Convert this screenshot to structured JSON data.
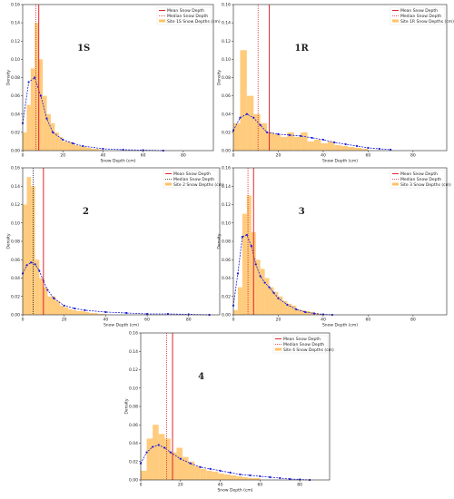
{
  "chart_data": [
    {
      "type": "histogram",
      "label": "1S",
      "x_label": "Snow Depth (cm)",
      "y_label": "Density",
      "xlim": [
        0,
        95
      ],
      "ylim": [
        0,
        0.16
      ],
      "xticks": [
        0,
        20,
        40,
        60,
        80
      ],
      "yticks": [
        {
          "value": 0,
          "label": "0.00"
        },
        {
          "value": 0.02,
          "label": "0.02"
        },
        {
          "value": 0.04,
          "label": "0.04"
        },
        {
          "value": 0.06,
          "label": "0.06"
        },
        {
          "value": 0.08,
          "label": "0.08"
        },
        {
          "value": 0.1,
          "label": "0.10"
        },
        {
          "value": 0.12,
          "label": "0.12"
        },
        {
          "value": 0.14,
          "label": "0.14"
        },
        {
          "value": 0.16,
          "label": "0.16"
        }
      ],
      "hist": {
        "name": "Site 1S Snow Depths (cm)",
        "color": "#ffc266",
        "bins": [
          0,
          2,
          4,
          6,
          8,
          10,
          12,
          14,
          16,
          18,
          20,
          22,
          24,
          26,
          28,
          30,
          32,
          34,
          36,
          38,
          40
        ],
        "counts": [
          0.02,
          0.05,
          0.09,
          0.14,
          0.1,
          0.06,
          0.04,
          0.03,
          0.02,
          0.015,
          0.01,
          0.01,
          0.008,
          0.006,
          0.005,
          0.004,
          0.003,
          0.002,
          0.002,
          0.001
        ]
      },
      "kde": {
        "color": "#1a1adb",
        "x": [
          0,
          3,
          6,
          9,
          12,
          15,
          20,
          25,
          30,
          40,
          50,
          60,
          70
        ],
        "values": [
          0.03,
          0.075,
          0.08,
          0.06,
          0.035,
          0.02,
          0.012,
          0.008,
          0.005,
          0.002,
          0.001,
          0.0005,
          0
        ]
      },
      "mean": {
        "name": "Mean Snow Depth",
        "value": 8,
        "color": "#e0262b"
      },
      "median": {
        "name": "Median Snow Depth",
        "value": 6.5,
        "color": "#e0262b"
      }
    },
    {
      "type": "histogram",
      "label": "1R",
      "x_label": "Snow Depth (cm)",
      "y_label": "Density",
      "xlim": [
        0,
        95
      ],
      "ylim": [
        0,
        0.16
      ],
      "xticks": [
        0,
        20,
        40,
        60,
        80
      ],
      "yticks": [
        {
          "value": 0,
          "label": "0.00"
        },
        {
          "value": 0.02,
          "label": "0.02"
        },
        {
          "value": 0.04,
          "label": "0.04"
        },
        {
          "value": 0.06,
          "label": "0.06"
        },
        {
          "value": 0.08,
          "label": "0.08"
        },
        {
          "value": 0.1,
          "label": "0.10"
        },
        {
          "value": 0.12,
          "label": "0.12"
        },
        {
          "value": 0.14,
          "label": "0.14"
        },
        {
          "value": 0.16,
          "label": "0.16"
        }
      ],
      "hist": {
        "name": "Site 1R Snow Depths (cm)",
        "color": "#ffc266",
        "bins": [
          0,
          3,
          6,
          9,
          12,
          15,
          18,
          21,
          24,
          27,
          30,
          33,
          36,
          39,
          42,
          45,
          48,
          51,
          54,
          57,
          60
        ],
        "counts": [
          0.03,
          0.11,
          0.06,
          0.04,
          0.03,
          0.02,
          0.018,
          0.015,
          0.02,
          0.015,
          0.02,
          0.01,
          0.012,
          0.008,
          0.01,
          0.006,
          0.005,
          0.004,
          0.003,
          0.002
        ]
      },
      "kde": {
        "color": "#1a1adb",
        "x": [
          0,
          3,
          6,
          9,
          12,
          15,
          20,
          25,
          30,
          35,
          40,
          45,
          50,
          55,
          60,
          65,
          70
        ],
        "values": [
          0.022,
          0.036,
          0.04,
          0.036,
          0.028,
          0.02,
          0.018,
          0.017,
          0.016,
          0.014,
          0.012,
          0.009,
          0.007,
          0.005,
          0.003,
          0.002,
          0.001
        ]
      },
      "mean": {
        "name": "Mean Snow Depth",
        "value": 16,
        "color": "#e0262b"
      },
      "median": {
        "name": "Median Snow Depth",
        "value": 11,
        "color": "#e0262b"
      }
    },
    {
      "type": "histogram",
      "label": "2",
      "x_label": "Snow Depth (cm)",
      "y_label": "Density",
      "xlim": [
        0,
        95
      ],
      "ylim": [
        0,
        0.16
      ],
      "xticks": [
        0,
        20,
        40,
        60,
        80
      ],
      "yticks": [
        {
          "value": 0,
          "label": "0.00"
        },
        {
          "value": 0.02,
          "label": "0.02"
        },
        {
          "value": 0.04,
          "label": "0.04"
        },
        {
          "value": 0.06,
          "label": "0.06"
        },
        {
          "value": 0.08,
          "label": "0.08"
        },
        {
          "value": 0.1,
          "label": "0.10"
        },
        {
          "value": 0.12,
          "label": "0.12"
        },
        {
          "value": 0.14,
          "label": "0.14"
        },
        {
          "value": 0.16,
          "label": "0.16"
        }
      ],
      "hist": {
        "name": "Site 2 Snow Depths (cm)",
        "color": "#ffc266",
        "bins": [
          0,
          2,
          4,
          6,
          8,
          10,
          12,
          14,
          16,
          18,
          20,
          22,
          24,
          26,
          28,
          30,
          32,
          34,
          36,
          38,
          40
        ],
        "counts": [
          0.12,
          0.15,
          0.14,
          0.06,
          0.04,
          0.03,
          0.02,
          0.02,
          0.015,
          0.01,
          0.008,
          0.006,
          0.005,
          0.004,
          0.004,
          0.003,
          0.002,
          0.002,
          0.001,
          0.001
        ]
      },
      "kde": {
        "color": "#1a1adb",
        "x": [
          0,
          2,
          4,
          6,
          8,
          10,
          12,
          15,
          20,
          25,
          30,
          40,
          50,
          60,
          70,
          80,
          90
        ],
        "values": [
          0.045,
          0.054,
          0.057,
          0.055,
          0.048,
          0.037,
          0.027,
          0.018,
          0.01,
          0.007,
          0.005,
          0.003,
          0.002,
          0.001,
          0.001,
          0.0005,
          0
        ]
      },
      "mean": {
        "name": "Mean Snow Depth",
        "value": 10,
        "color": "#e0262b"
      },
      "median": {
        "name": "Median Snow Depth",
        "value": 5,
        "color": "#222222"
      }
    },
    {
      "type": "histogram",
      "label": "3",
      "x_label": "Snow Depth (cm)",
      "y_label": "Density",
      "xlim": [
        0,
        95
      ],
      "ylim": [
        0,
        0.16
      ],
      "xticks": [
        0,
        20,
        40,
        60,
        80
      ],
      "yticks": [
        {
          "value": 0,
          "label": "0.00"
        },
        {
          "value": 0.02,
          "label": "0.02"
        },
        {
          "value": 0.04,
          "label": "0.04"
        },
        {
          "value": 0.06,
          "label": "0.06"
        },
        {
          "value": 0.08,
          "label": "0.08"
        },
        {
          "value": 0.1,
          "label": "0.10"
        },
        {
          "value": 0.12,
          "label": "0.12"
        },
        {
          "value": 0.14,
          "label": "0.14"
        },
        {
          "value": 0.16,
          "label": "0.16"
        }
      ],
      "hist": {
        "name": "Site 3 Snow Depths (cm)",
        "color": "#ffc266",
        "bins": [
          0,
          2,
          4,
          6,
          8,
          10,
          12,
          14,
          16,
          18,
          20,
          22,
          24,
          26,
          28,
          30,
          32,
          34,
          36,
          38,
          40
        ],
        "counts": [
          0.005,
          0.03,
          0.11,
          0.13,
          0.09,
          0.06,
          0.05,
          0.04,
          0.03,
          0.025,
          0.02,
          0.015,
          0.012,
          0.01,
          0.006,
          0.005,
          0.004,
          0.003,
          0.002,
          0.001
        ]
      },
      "kde": {
        "color": "#1a1adb",
        "x": [
          0,
          2,
          4,
          6,
          8,
          10,
          12,
          14,
          16,
          18,
          20,
          24,
          28,
          32,
          36,
          40,
          44
        ],
        "values": [
          0.01,
          0.045,
          0.085,
          0.087,
          0.075,
          0.055,
          0.042,
          0.035,
          0.03,
          0.024,
          0.018,
          0.011,
          0.006,
          0.003,
          0.0015,
          0.0005,
          0
        ]
      },
      "mean": {
        "name": "Mean Snow Depth",
        "value": 9,
        "color": "#e0262b"
      },
      "median": {
        "name": "Median Snow Depth",
        "value": 6.5,
        "color": "#e0262b"
      }
    },
    {
      "type": "histogram",
      "label": "4",
      "x_label": "Snow Depth (cm)",
      "y_label": "Density",
      "xlim": [
        0,
        95
      ],
      "ylim": [
        0,
        0.16
      ],
      "xticks": [
        0,
        20,
        40,
        60,
        80
      ],
      "yticks": [
        {
          "value": 0,
          "label": "0.00"
        },
        {
          "value": 0.02,
          "label": "0.02"
        },
        {
          "value": 0.04,
          "label": "0.04"
        },
        {
          "value": 0.06,
          "label": "0.06"
        },
        {
          "value": 0.08,
          "label": "0.08"
        },
        {
          "value": 0.1,
          "label": "0.10"
        },
        {
          "value": 0.12,
          "label": "0.12"
        },
        {
          "value": 0.14,
          "label": "0.14"
        },
        {
          "value": 0.16,
          "label": "0.16"
        }
      ],
      "hist": {
        "name": "Site 4 Snow Depths (cm)",
        "color": "#ffc266",
        "bins": [
          0,
          3,
          6,
          9,
          12,
          15,
          18,
          21,
          24,
          27,
          30,
          33,
          36,
          39,
          42,
          45,
          48,
          51,
          54,
          57,
          60
        ],
        "counts": [
          0.01,
          0.045,
          0.06,
          0.05,
          0.045,
          0.03,
          0.035,
          0.025,
          0.02,
          0.015,
          0.012,
          0.01,
          0.009,
          0.007,
          0.006,
          0.005,
          0.004,
          0.003,
          0.002,
          0.002
        ]
      },
      "kde": {
        "color": "#1a1adb",
        "x": [
          0,
          3,
          6,
          9,
          12,
          15,
          20,
          25,
          30,
          35,
          40,
          45,
          50,
          55,
          60,
          65,
          70,
          75,
          80,
          85
        ],
        "values": [
          0.018,
          0.03,
          0.036,
          0.038,
          0.035,
          0.03,
          0.023,
          0.018,
          0.014,
          0.012,
          0.01,
          0.008,
          0.006,
          0.005,
          0.004,
          0.003,
          0.002,
          0.001,
          0.0005,
          0
        ]
      },
      "mean": {
        "name": "Mean Snow Depth",
        "value": 16,
        "color": "#e0262b"
      },
      "median": {
        "name": "Median Snow Depth",
        "value": 13,
        "color": "#e0262b"
      }
    }
  ]
}
